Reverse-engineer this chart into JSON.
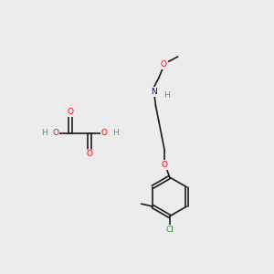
{
  "bg_color": "#ececec",
  "bond_color": "#1a1a1a",
  "bond_width": 1.2,
  "atom_colors": {
    "O": "#ff0000",
    "N": "#0000cc",
    "Cl": "#00aa00",
    "H": "#4a8fa0"
  },
  "font_size": 6.5,
  "fig_w": 3.0,
  "fig_h": 3.0,
  "dpi": 100
}
